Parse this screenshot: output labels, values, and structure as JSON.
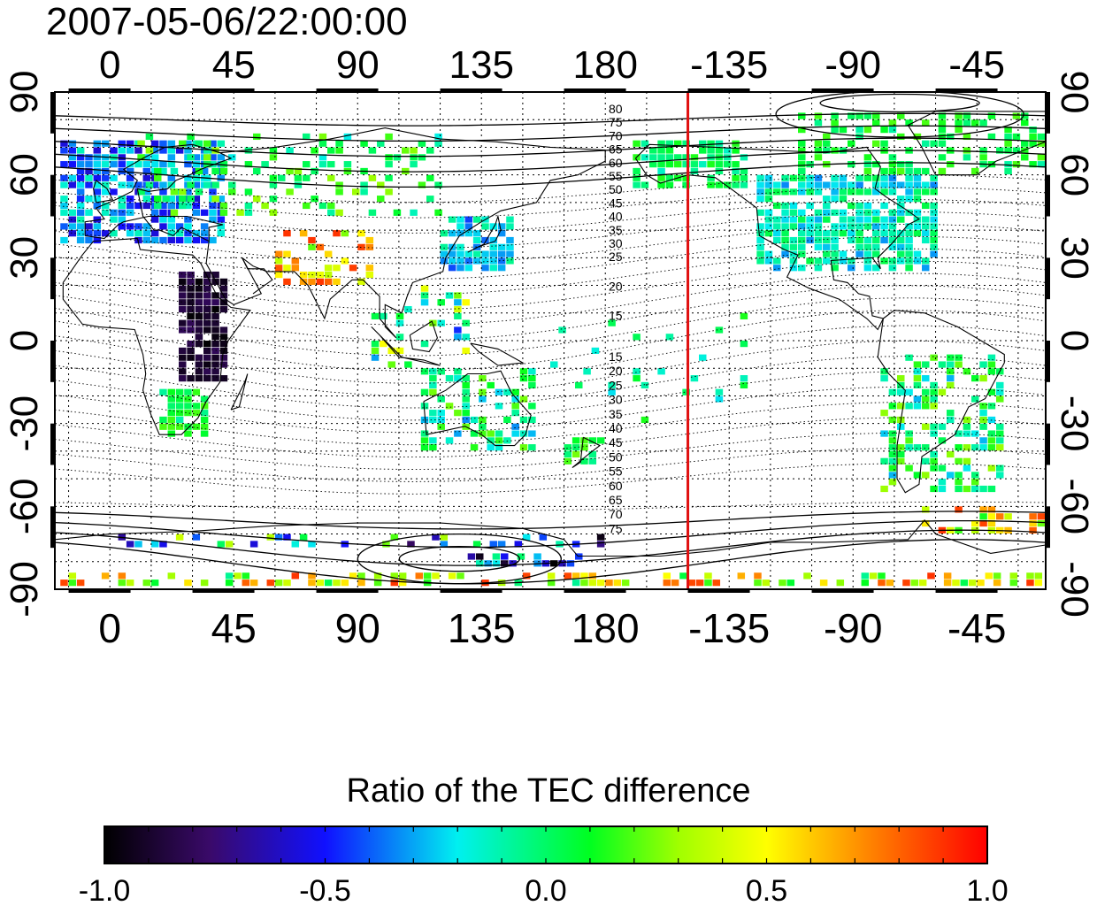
{
  "timestamp": "2007-05-06/22:00:00",
  "map": {
    "projection": "cylindrical equidistant, centered 180°",
    "lon_range": [
      -20,
      340
    ],
    "lat_range": [
      -90,
      90
    ],
    "x_tick_labels": [
      "0",
      "45",
      "90",
      "135",
      "180",
      "-135",
      "-90",
      "-45"
    ],
    "x_tick_lons": [
      0,
      45,
      90,
      135,
      180,
      225,
      270,
      315
    ],
    "y_tick_labels": [
      "90",
      "60",
      "30",
      "0",
      "-30",
      "-60",
      "-90"
    ],
    "y_tick_lats": [
      90,
      60,
      30,
      0,
      -30,
      -60,
      -90
    ],
    "grid_lon_step": 15,
    "grid_lat_step": 10,
    "grid": "dotted",
    "terminator_lon": 210,
    "terminator_color": "#e01010",
    "contour_labels": {
      "north": [
        "80",
        "75",
        "70",
        "65",
        "60",
        "55",
        "50",
        "45",
        "40",
        "35",
        "30",
        "25",
        "20",
        "15"
      ],
      "south": [
        "15",
        "20",
        "25",
        "30",
        "35",
        "40",
        "45",
        "50",
        "55",
        "60",
        "65",
        "70",
        "75"
      ]
    }
  },
  "colorbar": {
    "title": "Ratio of the TEC difference",
    "min": -1.0,
    "max": 1.0,
    "tick_labels": [
      "-1.0",
      "-0.5",
      "0.0",
      "0.5",
      "1.0"
    ],
    "tick_values": [
      -1.0,
      -0.5,
      0.0,
      0.5,
      1.0
    ],
    "colormap": "rainbow: black-purple-blue-cyan-green-yellow-red"
  }
}
